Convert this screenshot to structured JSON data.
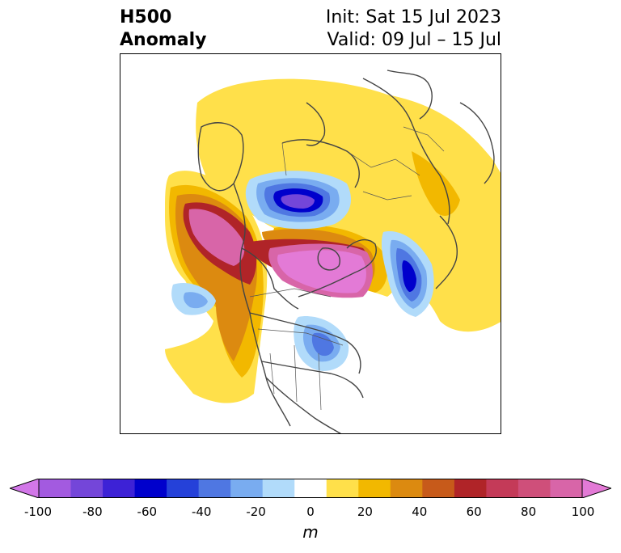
{
  "title": {
    "line1": "H500",
    "line2": "Anomaly"
  },
  "subtitle": {
    "init": "Init: Sat 15 Jul 2023",
    "valid": "Valid: 09 Jul – 15 Jul"
  },
  "colorbar": {
    "unit": "m",
    "ticks": [
      "-100",
      "-80",
      "-60",
      "-40",
      "-20",
      "0",
      "20",
      "40",
      "60",
      "80",
      "100"
    ],
    "colors": [
      "#d277e8",
      "#a35ae0",
      "#7446d9",
      "#3d22d6",
      "#0000cc",
      "#2541d9",
      "#4f77e2",
      "#79acf0",
      "#b1dbfa",
      "#ffffff",
      "#ffe04a",
      "#f2b800",
      "#dc8a10",
      "#c75a1a",
      "#b02428",
      "#c43a58",
      "#cf4f7a",
      "#d865a8",
      "#e37ad6"
    ]
  }
}
